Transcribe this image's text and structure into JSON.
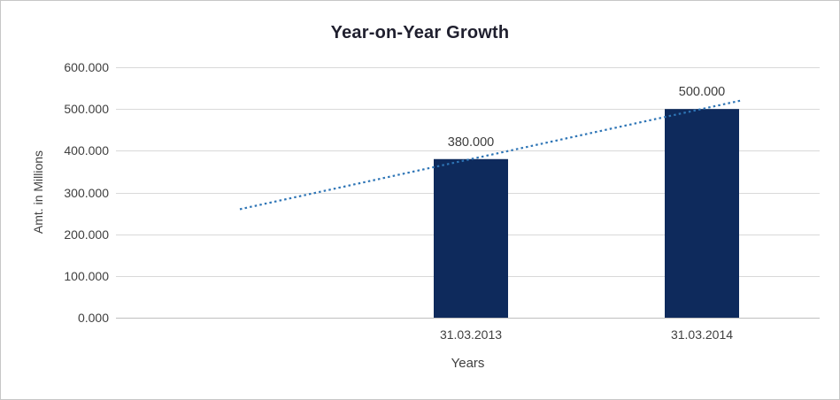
{
  "chart_data": {
    "type": "bar",
    "title": "Year-on-Year Growth",
    "xlabel": "Years",
    "ylabel": "Amt. in Millions",
    "categories": [
      "31.03.2013",
      "31.03.2014"
    ],
    "values": [
      380,
      500
    ],
    "value_labels": [
      "380.000",
      "500.000"
    ],
    "y_ticks": [
      {
        "value": 0,
        "label": "0.000"
      },
      {
        "value": 100,
        "label": "100.000"
      },
      {
        "value": 200,
        "label": "200.000"
      },
      {
        "value": 300,
        "label": "300.000"
      },
      {
        "value": 400,
        "label": "400.000"
      },
      {
        "value": 500,
        "label": "500.000"
      },
      {
        "value": 600,
        "label": "600.000"
      }
    ],
    "ylim": [
      0,
      600
    ],
    "grid": "horizontal-only",
    "legend": "none",
    "trendline": {
      "type": "linear",
      "line_style": "dotted"
    },
    "colors": {
      "bar": "#0e2a5c",
      "trendline": "#2e75b6",
      "gridline": "#d9d9d9",
      "axis_line": "#bfbfbf",
      "title_text": "#1f1f2e",
      "label_text": "#404040"
    }
  }
}
